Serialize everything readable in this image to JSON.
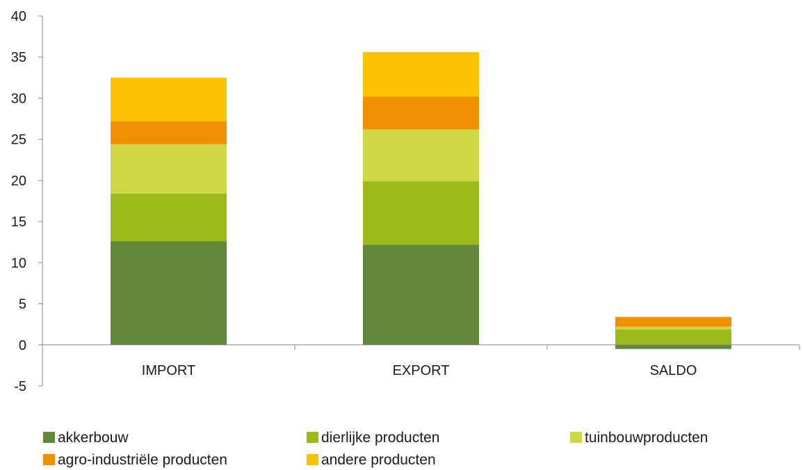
{
  "chart_data": {
    "type": "bar",
    "stacked": true,
    "title": "",
    "xlabel": "",
    "ylabel": "",
    "categories": [
      "IMPORT",
      "EXPORT",
      "SALDO"
    ],
    "ylim": [
      -5,
      40
    ],
    "yticks": [
      -5,
      0,
      5,
      10,
      15,
      20,
      25,
      30,
      35,
      40
    ],
    "grid": false,
    "legend_position": "bottom",
    "series": [
      {
        "name": "akkerbouw",
        "color": "#64883a",
        "values": [
          12.6,
          12.2,
          -0.5
        ]
      },
      {
        "name": "dierlijke producten",
        "color": "#9cba1a",
        "values": [
          5.8,
          7.7,
          1.9
        ]
      },
      {
        "name": "tuinbouwproducten",
        "color": "#cdd844",
        "values": [
          6.0,
          6.3,
          0.3
        ]
      },
      {
        "name": "agro-industriële producten",
        "color": "#f08f00",
        "values": [
          2.8,
          4.0,
          1.2
        ]
      },
      {
        "name": "andere producten",
        "color": "#fcc100",
        "values": [
          5.3,
          5.4,
          0.0
        ]
      }
    ]
  }
}
